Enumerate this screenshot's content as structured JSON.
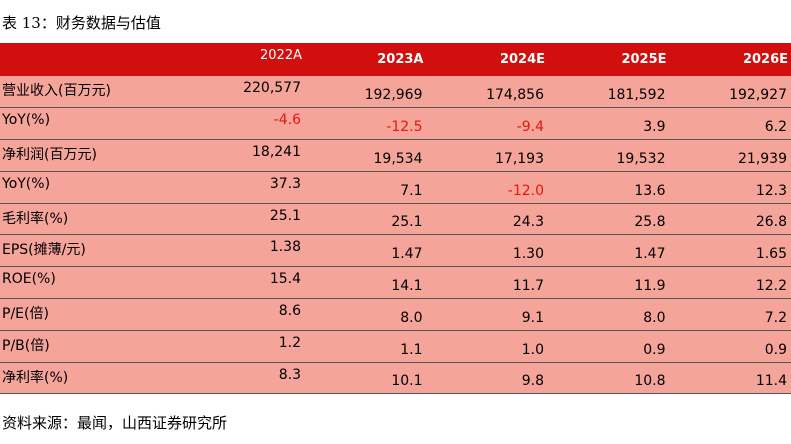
{
  "title": "表 13：财务数据与估值",
  "source": "资料来源：最闻，山西证券研究所",
  "header": [
    "",
    "2022A",
    "2023A",
    "2024E",
    "2025E",
    "2026E"
  ],
  "rows": [
    {
      "label": "营业收入(百万元)",
      "values": [
        "220,577",
        "192,969",
        "174,856",
        "181,592",
        "192,927"
      ]
    },
    {
      "label": "YoY(%)",
      "values": [
        "-4.6",
        "-12.5",
        "-9.4",
        "3.9",
        "6.2"
      ]
    },
    {
      "label": "净利润(百万元)",
      "values": [
        "18,241",
        "19,534",
        "17,193",
        "19,532",
        "21,939"
      ]
    },
    {
      "label": "YoY(%)",
      "values": [
        "37.3",
        "7.1",
        "-12.0",
        "13.6",
        "12.3"
      ]
    },
    {
      "label": "毛利率(%)",
      "values": [
        "25.1",
        "25.1",
        "24.3",
        "25.8",
        "26.8"
      ]
    },
    {
      "label": "EPS(摊薄/元)",
      "values": [
        "1.38",
        "1.47",
        "1.30",
        "1.47",
        "1.65"
      ]
    },
    {
      "label": "ROE(%)",
      "values": [
        "15.4",
        "14.1",
        "11.7",
        "11.9",
        "12.2"
      ]
    },
    {
      "label": "P/E(倍)",
      "values": [
        "8.6",
        "8.0",
        "9.1",
        "8.0",
        "7.2"
      ]
    },
    {
      "label": "P/B(倍)",
      "values": [
        "1.2",
        "1.1",
        "1.0",
        "0.9",
        "0.9"
      ]
    },
    {
      "label": "净利率(%)",
      "values": [
        "8.3",
        "10.1",
        "9.8",
        "10.8",
        "11.4"
      ]
    }
  ],
  "colors": {
    "header_bg": "#d20f0f",
    "row_bg": "#f5a49a",
    "negative": "#e8160f"
  }
}
